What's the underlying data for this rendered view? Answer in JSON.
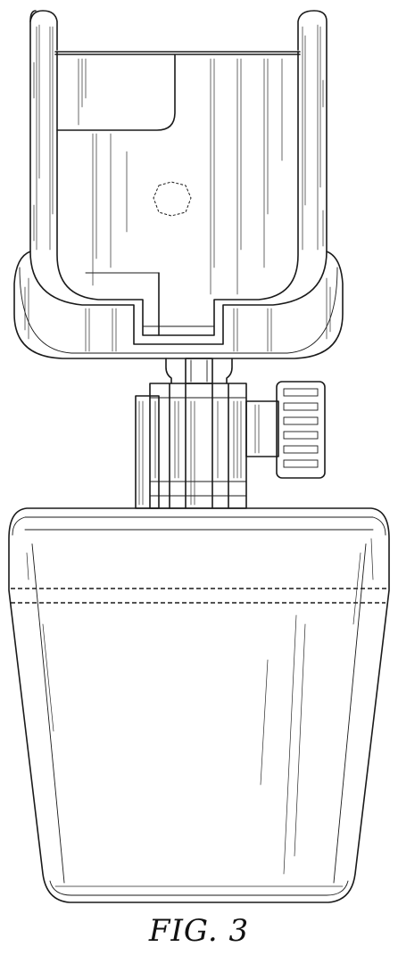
{
  "figure": {
    "label": "FIG. 3"
  }
}
